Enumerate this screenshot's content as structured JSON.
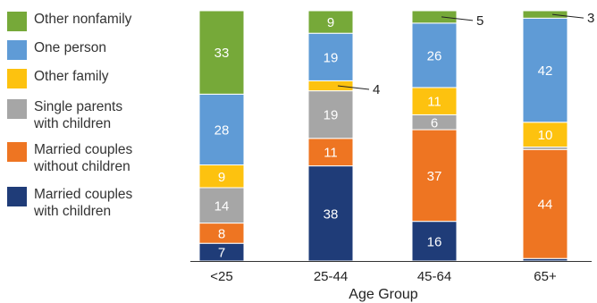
{
  "chart_data": {
    "type": "bar",
    "stacked": true,
    "xlabel": "Age Group",
    "ylabel": "",
    "ylim": [
      0,
      100
    ],
    "categories": [
      "<25",
      "25-44",
      "45-64",
      "65+"
    ],
    "series": [
      {
        "name": "Married couples\nwith children",
        "color": "#1f3c78",
        "values": [
          7,
          38,
          16,
          1
        ]
      },
      {
        "name": "Married couples\nwithout children",
        "color": "#ee7522",
        "values": [
          8,
          11,
          37,
          44
        ]
      },
      {
        "name": "Single parents\nwith children",
        "color": "#a6a6a6",
        "values": [
          14,
          19,
          6,
          1
        ]
      },
      {
        "name": "Other family",
        "color": "#fdc20f",
        "values": [
          9,
          4,
          11,
          10
        ]
      },
      {
        "name": "One person",
        "color": "#5f9bd6",
        "values": [
          28,
          19,
          26,
          42
        ]
      },
      {
        "name": "Other nonfamily",
        "color": "#76a939",
        "values": [
          33,
          9,
          5,
          3
        ]
      }
    ],
    "data_labels": [
      [
        "7",
        "8",
        "14",
        "9",
        "28",
        "33"
      ],
      [
        "38",
        "11",
        "19",
        "4",
        "19",
        "9"
      ],
      [
        "16",
        "37",
        "6",
        "11",
        "26",
        "5"
      ],
      [
        "",
        "44",
        "",
        "10",
        "42",
        "3"
      ]
    ],
    "legend_position": "left",
    "grid": false
  }
}
